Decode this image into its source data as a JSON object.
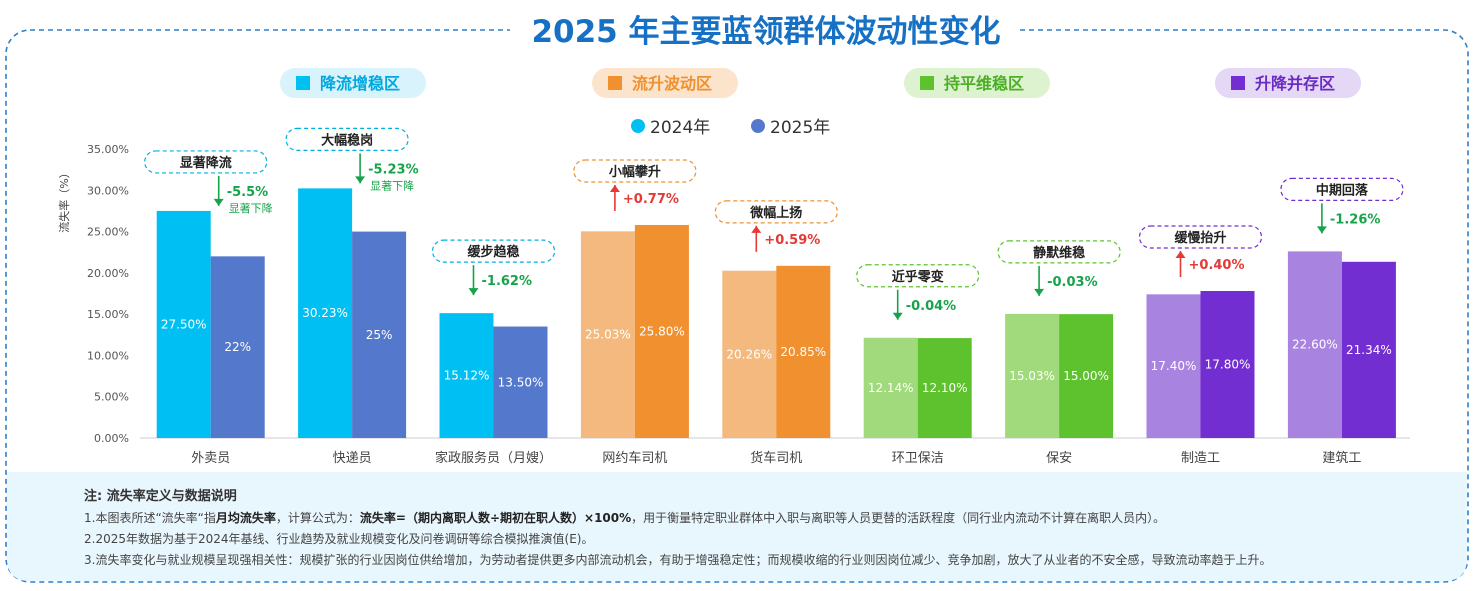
{
  "chart_data": {
    "type": "bar",
    "title": "2025 年主要蓝领群体波动性变化",
    "ylabel": "流失率（%）",
    "ylim": [
      0,
      35
    ],
    "yticks": [
      "0.00%",
      "5.00%",
      "10.00%",
      "15.00%",
      "20.00%",
      "25.00%",
      "30.00%",
      "35.00%"
    ],
    "grid": false,
    "legend_position": "top-center",
    "categories": [
      "外卖员",
      "快递员",
      "家政服务员（月嫂）",
      "网约车司机",
      "货车司机",
      "环卫保洁",
      "保安",
      "制造工",
      "建筑工"
    ],
    "series": [
      {
        "name": "2024年",
        "color": "#00C0F3",
        "values": [
          27.5,
          30.23,
          15.12,
          25.03,
          20.26,
          12.14,
          15.03,
          17.4,
          22.6
        ],
        "labels": [
          "27.50%",
          "30.23%",
          "15.12%",
          "25.03%",
          "20.26%",
          "12.14%",
          "15.03%",
          "17.40%",
          "22.60%"
        ]
      },
      {
        "name": "2025年",
        "color": "#5478CB",
        "values": [
          22,
          25,
          13.5,
          25.8,
          20.85,
          12.1,
          15,
          17.8,
          21.34
        ],
        "labels": [
          "22%",
          "25%",
          "13.50%",
          "25.80%",
          "20.85%",
          "12.10%",
          "15.00%",
          "17.80%",
          "21.34%"
        ]
      }
    ],
    "bar_colors": [
      [
        "#00C0F3",
        "#5478CB"
      ],
      [
        "#00C0F3",
        "#5478CB"
      ],
      [
        "#00C0F3",
        "#5478CB"
      ],
      [
        "#F4B97F",
        "#F0902E"
      ],
      [
        "#F4B97F",
        "#F0902E"
      ],
      [
        "#A1DA7C",
        "#5EC22F"
      ],
      [
        "#A1DA7C",
        "#5EC22F"
      ],
      [
        "#A983E0",
        "#722ED1"
      ],
      [
        "#A983E0",
        "#722ED1"
      ]
    ],
    "annotations": [
      {
        "category": "外卖员",
        "tag": "显著降流",
        "change": "-5.5%",
        "direction": "down",
        "note": "显著下降",
        "tag_color": "#00B0E0"
      },
      {
        "category": "快递员",
        "tag": "大幅稳岗",
        "change": "-5.23%",
        "direction": "down",
        "note": "显著下降",
        "tag_color": "#00B0E0"
      },
      {
        "category": "家政服务员（月嫂）",
        "tag": "缓步趋稳",
        "change": "-1.62%",
        "direction": "down",
        "note": "",
        "tag_color": "#00B0E0"
      },
      {
        "category": "网约车司机",
        "tag": "小幅攀升",
        "change": "+0.77%",
        "direction": "up",
        "note": "",
        "tag_color": "#F0902E"
      },
      {
        "category": "货车司机",
        "tag": "微幅上扬",
        "change": "+0.59%",
        "direction": "up",
        "note": "",
        "tag_color": "#F0902E"
      },
      {
        "category": "环卫保洁",
        "tag": "近乎零变",
        "change": "-0.04%",
        "direction": "down",
        "note": "",
        "tag_color": "#5EC22F"
      },
      {
        "category": "保安",
        "tag": "静默维稳",
        "change": "-0.03%",
        "direction": "down",
        "note": "",
        "tag_color": "#5EC22F"
      },
      {
        "category": "制造工",
        "tag": "缓慢抬升",
        "change": "+0.40%",
        "direction": "up",
        "note": "",
        "tag_color": "#722ED1"
      },
      {
        "category": "建筑工",
        "tag": "中期回落",
        "change": "-1.26%",
        "direction": "down",
        "note": "",
        "tag_color": "#722ED1"
      }
    ],
    "zones": [
      {
        "label": "降流增稳区",
        "bg": "#D8F3FC",
        "square": "#00C0F3",
        "text": "#00A8E0"
      },
      {
        "label": "流升波动区",
        "bg": "#FCE3CB",
        "square": "#F0902E",
        "text": "#F0902E"
      },
      {
        "label": "持平维稳区",
        "bg": "#DDF2CF",
        "square": "#5EC22F",
        "text": "#4CAF26"
      },
      {
        "label": "升降并存区",
        "bg": "#E4D8F6",
        "square": "#722ED1",
        "text": "#6A2BC4"
      }
    ]
  },
  "notes": {
    "heading": "注: 流失率定义与数据说明",
    "line1_parts": [
      "1.本图表所述“流失率“指",
      "月均流失率",
      "，计算公式为：",
      "流失率=（期内离职人数÷期初在职人数）×100%",
      "，用于衡量特定职业群体中入职与离职等人员更替的活跃程度（同行业内流动不计算在离职人员内）。"
    ],
    "line2": "2.2025年数据为基于2024年基线、行业趋势及就业规模变化及问卷调研等综合模拟推演值(E)。",
    "line3": "3.流失率变化与就业规模呈现强相关性：规模扩张的行业因岗位供给增加，为劳动者提供更多内部流动机会，有助于增强稳定性；而规模收缩的行业则因岗位减少、竞争加剧，放大了从业者的不安全感，导致流动率趋于上升。"
  },
  "colors": {
    "title": "#1670C4",
    "frame": "#2E7FC9",
    "notes_bg": "#E8F6FD",
    "down": "#17A34A",
    "up": "#E53935",
    "axis_text": "#555555"
  }
}
